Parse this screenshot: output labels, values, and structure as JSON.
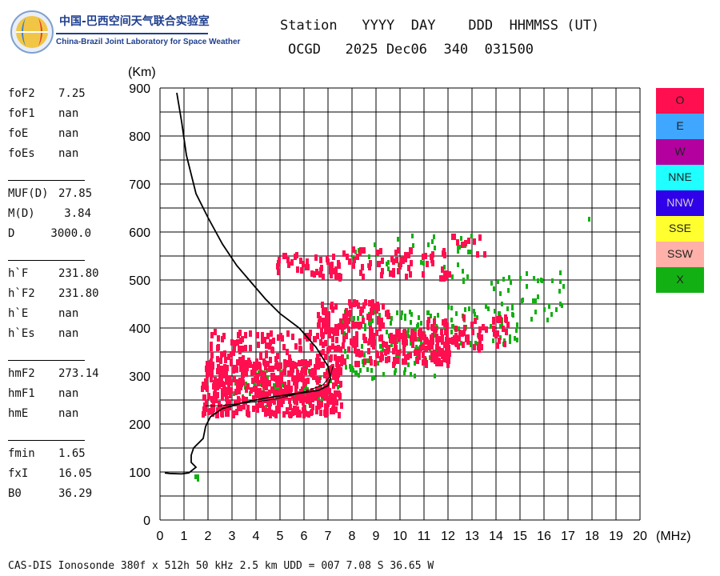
{
  "logo": {
    "cn": "中国-巴西空间天气联合实验室",
    "en": "China-Brazil Joint Laboratory for Space Weather"
  },
  "header": {
    "line1": "Station   YYYY  DAY    DDD  HHMMSS (UT)",
    "line2": "OCGD   2025 Dec06  340  031500"
  },
  "params": [
    {
      "name": "foF2",
      "value": "7.25"
    },
    {
      "name": "foF1",
      "value": "nan"
    },
    {
      "name": "foE",
      "value": "nan"
    },
    {
      "name": "foEs",
      "value": "nan"
    },
    {
      "name": "MUF(D)",
      "value": "27.85"
    },
    {
      "name": "M(D)",
      "value": "3.84"
    },
    {
      "name": "D",
      "value": "3000.0"
    },
    {
      "name": "h`F",
      "value": "231.80"
    },
    {
      "name": "h`F2",
      "value": "231.80"
    },
    {
      "name": "h`E",
      "value": "nan"
    },
    {
      "name": "h`Es",
      "value": "nan"
    },
    {
      "name": "hmF2",
      "value": "273.14"
    },
    {
      "name": "hmF1",
      "value": "nan"
    },
    {
      "name": "hmE",
      "value": "nan"
    },
    {
      "name": "fmin",
      "value": "1.65"
    },
    {
      "name": "fxI",
      "value": "16.05"
    },
    {
      "name": "B0",
      "value": "36.29"
    }
  ],
  "legend": [
    {
      "label": "O",
      "color": "#ff0f4f"
    },
    {
      "label": "E",
      "color": "#3fa7ff"
    },
    {
      "label": "W",
      "color": "#b3009f"
    },
    {
      "label": "NNE",
      "color": "#1fffff"
    },
    {
      "label": "NNW",
      "color": "#2f00e8"
    },
    {
      "label": "SSE",
      "color": "#ffff30"
    },
    {
      "label": "SSW",
      "color": "#ffb0a8"
    },
    {
      "label": "X",
      "color": "#13b013"
    }
  ],
  "footer": "CAS-DIS Ionosonde 380f x 512h 50 kHz 2.5 km UDD = 007 7.08 S 36.65 W",
  "chart_data": {
    "type": "scatter",
    "xlabel": "(MHz)",
    "ylabel": "(Km)",
    "xlim": [
      0,
      20
    ],
    "ylim": [
      0,
      900
    ],
    "xticks": [
      0,
      1,
      2,
      3,
      4,
      5,
      6,
      7,
      8,
      9,
      10,
      11,
      12,
      13,
      14,
      15,
      16,
      17,
      18,
      19,
      20
    ],
    "yticks": [
      0,
      100,
      200,
      300,
      400,
      500,
      600,
      700,
      800,
      900
    ],
    "grid": true,
    "legend_position": "right",
    "series": [
      {
        "name": "O",
        "color": "#ff0f4f",
        "clusters": [
          {
            "x": [
              1.7,
              7.5
            ],
            "y": [
              225,
              340
            ],
            "count": 520
          },
          {
            "x": [
              2.0,
              6.5
            ],
            "y": [
              330,
              400
            ],
            "count": 90
          },
          {
            "x": [
              6.5,
              9.5
            ],
            "y": [
              330,
              460
            ],
            "count": 180
          },
          {
            "x": [
              9.5,
              12.0
            ],
            "y": [
              330,
              400
            ],
            "count": 120
          },
          {
            "x": [
              11.0,
              14.5
            ],
            "y": [
              360,
              430
            ],
            "count": 70
          },
          {
            "x": [
              4.8,
              7.5
            ],
            "y": [
              510,
              560
            ],
            "count": 40
          },
          {
            "x": [
              7.0,
              12.0
            ],
            "y": [
              510,
              570
            ],
            "count": 70
          },
          {
            "x": [
              12.0,
              14.0
            ],
            "y": [
              560,
              610
            ],
            "count": 10
          }
        ]
      },
      {
        "name": "X",
        "color": "#13b013",
        "clusters": [
          {
            "x": [
              1.4,
              1.6
            ],
            "y": [
              88,
              95
            ],
            "count": 4
          },
          {
            "x": [
              3.0,
              7.5
            ],
            "y": [
              240,
              330
            ],
            "count": 70
          },
          {
            "x": [
              7.5,
              11.5
            ],
            "y": [
              300,
              440
            ],
            "count": 110
          },
          {
            "x": [
              10.5,
              15.0
            ],
            "y": [
              370,
              450
            ],
            "count": 70
          },
          {
            "x": [
              13.5,
              17.0
            ],
            "y": [
              420,
              520
            ],
            "count": 40
          },
          {
            "x": [
              7.5,
              13.0
            ],
            "y": [
              500,
              600
            ],
            "count": 40
          },
          {
            "x": [
              17.8,
              17.9
            ],
            "y": [
              630,
              640
            ],
            "count": 1
          }
        ]
      }
    ],
    "profile_line": {
      "color": "#000000",
      "points": [
        [
          0.7,
          890
        ],
        [
          0.9,
          830
        ],
        [
          1.1,
          760
        ],
        [
          1.5,
          680
        ],
        [
          2.0,
          630
        ],
        [
          2.6,
          575
        ],
        [
          3.2,
          530
        ],
        [
          3.8,
          495
        ],
        [
          4.4,
          460
        ],
        [
          5.0,
          430
        ],
        [
          5.8,
          400
        ],
        [
          6.5,
          360
        ],
        [
          7.0,
          320
        ],
        [
          7.1,
          295
        ],
        [
          7.0,
          280
        ],
        [
          6.6,
          270
        ],
        [
          5.5,
          262
        ],
        [
          4.5,
          255
        ],
        [
          3.5,
          245
        ],
        [
          2.6,
          232
        ],
        [
          2.1,
          215
        ],
        [
          1.9,
          195
        ],
        [
          1.8,
          170
        ],
        [
          1.4,
          150
        ],
        [
          1.3,
          135
        ],
        [
          1.3,
          120
        ],
        [
          1.5,
          110
        ],
        [
          1.2,
          98
        ],
        [
          0.9,
          96
        ],
        [
          0.4,
          97
        ],
        [
          0.2,
          98
        ]
      ]
    },
    "trace_line": {
      "color": "#000000",
      "points": [
        [
          1.9,
          238
        ],
        [
          2.5,
          238
        ],
        [
          3.2,
          242
        ],
        [
          4.0,
          246
        ],
        [
          4.8,
          252
        ],
        [
          5.5,
          260
        ],
        [
          6.2,
          270
        ],
        [
          6.8,
          282
        ],
        [
          7.1,
          300
        ],
        [
          7.2,
          320
        ]
      ]
    }
  }
}
